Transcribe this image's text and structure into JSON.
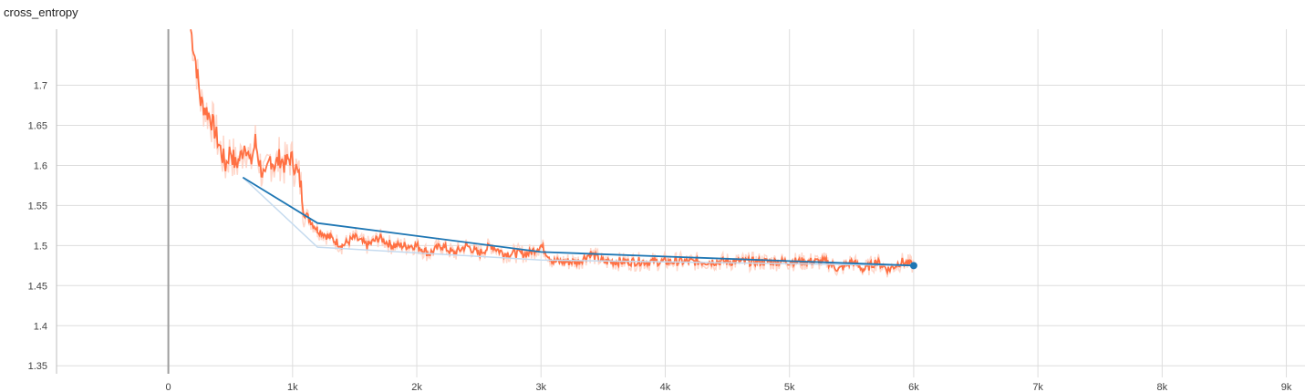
{
  "chart_data": {
    "type": "line",
    "title": "cross_entropy",
    "xlabel": "",
    "ylabel": "",
    "xlim": [
      -900,
      9150
    ],
    "ylim": [
      1.34,
      1.77
    ],
    "x_ticks": [
      0,
      1000,
      2000,
      3000,
      4000,
      5000,
      6000,
      7000,
      8000,
      9000
    ],
    "x_tick_labels": [
      "0",
      "1k",
      "2k",
      "3k",
      "4k",
      "5k",
      "6k",
      "7k",
      "8k",
      "9k"
    ],
    "y_ticks": [
      1.35,
      1.4,
      1.45,
      1.5,
      1.55,
      1.6,
      1.65,
      1.7
    ],
    "y_tick_labels": [
      "1.35",
      "1.4",
      "1.45",
      "1.5",
      "1.55",
      "1.6",
      "1.65",
      "1.7"
    ],
    "grid": true,
    "series": [
      {
        "color": "#ff7043",
        "raw_color": "#ffccbc",
        "x": [
          180,
          220,
          260,
          300,
          340,
          380,
          420,
          460,
          500,
          540,
          580,
          620,
          660,
          700,
          740,
          780,
          820,
          860,
          900,
          940,
          980,
          1020,
          1060,
          1100,
          1150,
          1200,
          1300,
          1400,
          1500,
          1600,
          1700,
          1800,
          1900,
          2000,
          2100,
          2200,
          2300,
          2400,
          2500,
          2600,
          2700,
          2800,
          2900,
          3000,
          3100,
          3200,
          3300,
          3400,
          3500,
          3600,
          3700,
          3800,
          3900,
          4000,
          4100,
          4200,
          4300,
          4400,
          4500,
          4600,
          4700,
          4800,
          4900,
          5000,
          5100,
          5200,
          5300,
          5400,
          5500,
          5600,
          5700,
          5800,
          5900,
          6000
        ],
        "values": [
          1.77,
          1.73,
          1.68,
          1.67,
          1.66,
          1.64,
          1.62,
          1.6,
          1.62,
          1.6,
          1.61,
          1.63,
          1.6,
          1.63,
          1.6,
          1.58,
          1.61,
          1.6,
          1.61,
          1.6,
          1.61,
          1.6,
          1.58,
          1.54,
          1.53,
          1.52,
          1.51,
          1.5,
          1.51,
          1.5,
          1.51,
          1.5,
          1.5,
          1.5,
          1.49,
          1.5,
          1.49,
          1.5,
          1.49,
          1.5,
          1.49,
          1.49,
          1.49,
          1.5,
          1.48,
          1.48,
          1.48,
          1.49,
          1.48,
          1.48,
          1.48,
          1.48,
          1.48,
          1.48,
          1.48,
          1.48,
          1.48,
          1.48,
          1.48,
          1.48,
          1.48,
          1.48,
          1.48,
          1.48,
          1.48,
          1.48,
          1.48,
          1.47,
          1.48,
          1.47,
          1.48,
          1.47,
          1.48,
          1.475
        ]
      },
      {
        "color": "#1f77b4",
        "raw_color": "#c6dbef",
        "x": [
          600,
          1200,
          3000,
          6000
        ],
        "values": [
          1.585,
          1.528,
          1.492,
          1.475
        ],
        "raw_values": [
          1.585,
          1.498,
          1.482,
          1.475
        ]
      }
    ]
  }
}
